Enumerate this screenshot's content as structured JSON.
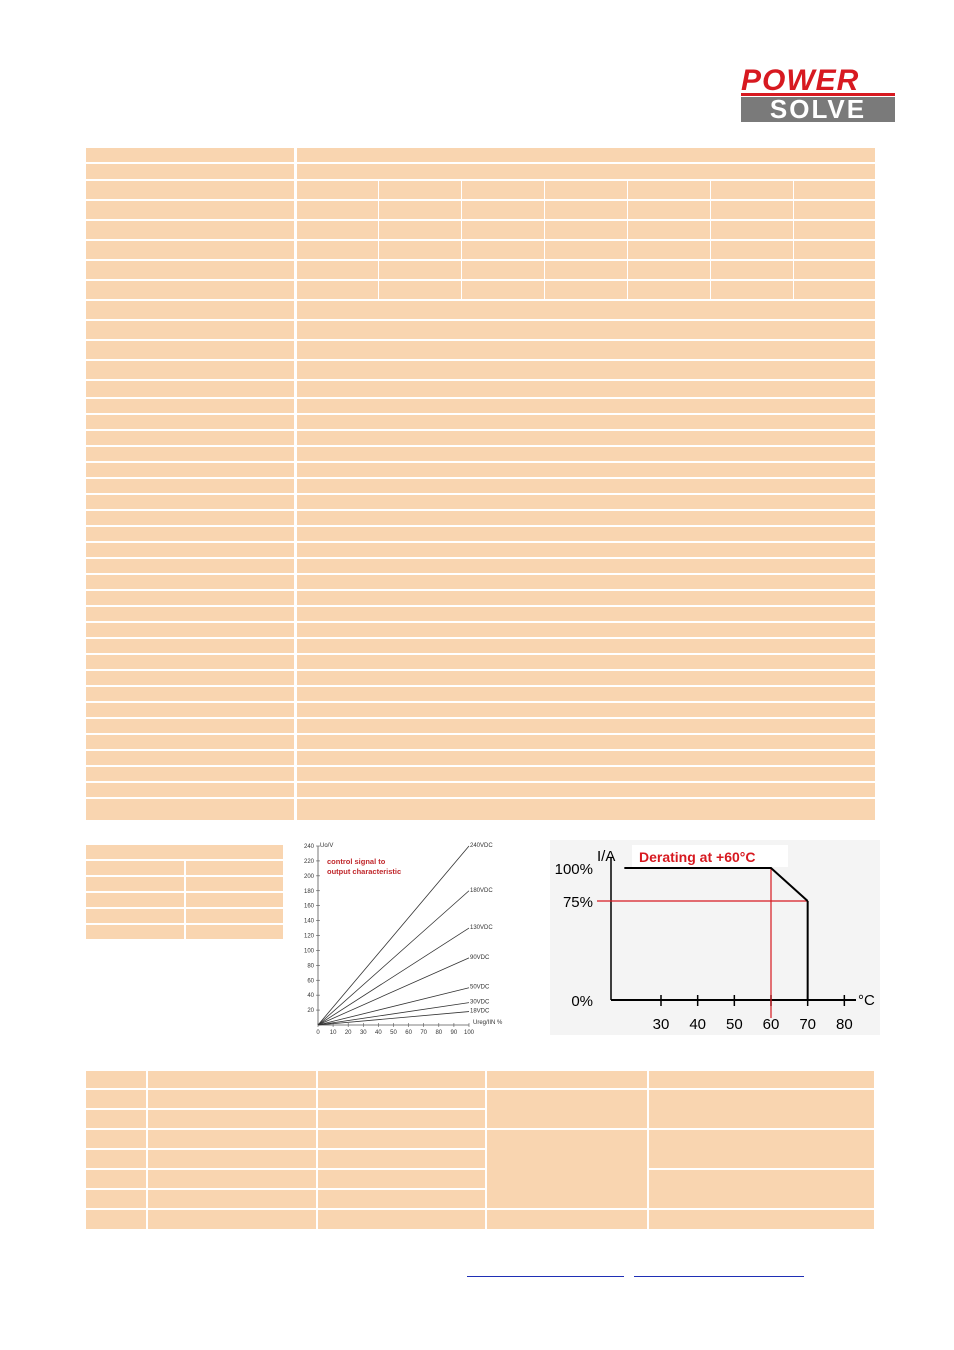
{
  "brand": {
    "logo_top": "POWER",
    "logo_bottom": "SOLVE",
    "red": "#d71920",
    "grey": "#7a7a7a"
  },
  "table_color": "#f9d5b0",
  "control_chart": {
    "chart_data": {
      "type": "line",
      "title": "control signal to output characteristic",
      "title_lines": [
        "control signal to",
        "output characteristic"
      ],
      "ylabel": "Uo/V",
      "xlabel": "Ureg/IIN %",
      "xlim": [
        0,
        100
      ],
      "ylim": [
        0,
        240
      ],
      "x_ticks": [
        "0",
        "10",
        "20",
        "30",
        "40",
        "50",
        "60",
        "70",
        "80",
        "90",
        "100"
      ],
      "y_ticks": [
        "20",
        "40",
        "60",
        "80",
        "100",
        "120",
        "140",
        "160",
        "180",
        "200",
        "220",
        "240"
      ],
      "series": [
        {
          "name": "240VDC",
          "x": [
            0,
            100
          ],
          "y": [
            0,
            240
          ]
        },
        {
          "name": "180VDC",
          "x": [
            0,
            100
          ],
          "y": [
            0,
            180
          ]
        },
        {
          "name": "130VDC",
          "x": [
            0,
            100
          ],
          "y": [
            0,
            130
          ]
        },
        {
          "name": "90VDC",
          "x": [
            0,
            100
          ],
          "y": [
            0,
            90
          ]
        },
        {
          "name": "50VDC",
          "x": [
            0,
            100
          ],
          "y": [
            0,
            50
          ]
        },
        {
          "name": "30VDC",
          "x": [
            0,
            100
          ],
          "y": [
            0,
            30
          ]
        },
        {
          "name": "18VDC",
          "x": [
            0,
            100
          ],
          "y": [
            0,
            18
          ]
        }
      ],
      "title_color": "#c0282c"
    }
  },
  "derating_chart": {
    "chart_data": {
      "type": "line",
      "title": "Derating at +60°C",
      "ylabel": "I/A",
      "xlabel": "°C",
      "y_ticks": [
        "100%",
        "75%",
        "0%"
      ],
      "x_ticks": [
        "30",
        "40",
        "50",
        "60",
        "70",
        "80"
      ],
      "xlim": [
        20,
        85
      ],
      "ylim": [
        0,
        100
      ],
      "series": [
        {
          "x": [
            20,
            60,
            70
          ],
          "y": [
            100,
            100,
            75
          ]
        }
      ],
      "guides": {
        "x": 60,
        "y": 75
      },
      "guide_color": "#d71920"
    }
  }
}
